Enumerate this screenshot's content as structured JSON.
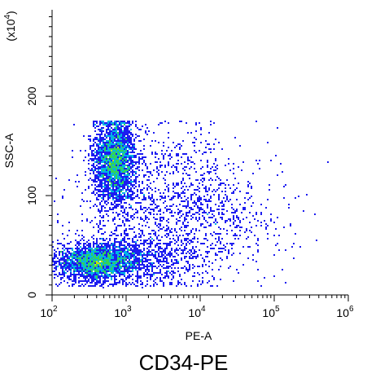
{
  "chart_data": {
    "type": "heatmap",
    "subtype": "flow-cytometry-density-scatter",
    "title": "CD34-PE",
    "xlabel": "PE-A",
    "ylabel": "SSC-A",
    "y_multiplier": "(x10",
    "y_multiplier_exp": "4",
    "y_multiplier_close": ")",
    "x_scale": "log",
    "xlim": [
      100,
      1000000
    ],
    "x_ticks": [
      {
        "base": "10",
        "exp": "2"
      },
      {
        "base": "10",
        "exp": "3"
      },
      {
        "base": "10",
        "exp": "4"
      },
      {
        "base": "10",
        "exp": "5"
      },
      {
        "base": "10",
        "exp": "6"
      }
    ],
    "y_scale": "linear",
    "ylim": [
      0,
      287
    ],
    "y_ticks": [
      "0",
      "100",
      "200"
    ],
    "grid": false,
    "legend": "none",
    "populations": [
      {
        "name": "",
        "x_center": 700,
        "x_spread_log": 0.14,
        "y_center": 135,
        "y_spread": 22,
        "count": 2600
      },
      {
        "name": "",
        "x_center": 400,
        "x_spread_log": 0.28,
        "y_center": 33,
        "y_spread": 9,
        "count": 2300
      },
      {
        "name": "",
        "x_center": 1300,
        "x_spread_log": 0.5,
        "y_center": 35,
        "y_spread": 14,
        "count": 900
      },
      {
        "name": "",
        "x_center": 3000,
        "x_spread_log": 0.55,
        "y_center": 100,
        "y_spread": 35,
        "count": 1100
      },
      {
        "name": "",
        "x_center": 20000,
        "x_spread_log": 0.45,
        "y_center": 75,
        "y_spread": 30,
        "count": 350
      }
    ],
    "y_cap": 175,
    "colors": {
      "axis": "#000000",
      "density_low": "#1c1cf0",
      "density_mid": "#00b4e6",
      "density_high": "#32d25a",
      "density_peak": "#c8e600"
    }
  }
}
